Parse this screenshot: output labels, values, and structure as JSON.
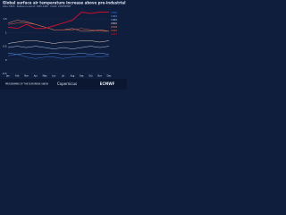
{
  "chart_data": {
    "type": "line",
    "title": "Global surface air temperature increase above pre-industrial",
    "subtitle": "Data: ERA5 · Reference period: 1850-1900 · Credit: C3S/ECMWF",
    "categories": [
      "Jan",
      "Feb",
      "Mar",
      "Apr",
      "May",
      "Jun",
      "Jul",
      "Aug",
      "Sep",
      "Oct",
      "Nov",
      "Dec"
    ],
    "series": [
      {
        "name": "1940",
        "color": "#3b6fd8",
        "values": [
          0.15,
          0.2,
          0.1,
          0.05,
          0.1,
          0.1,
          0.05,
          0.1,
          0.1,
          0.15,
          0.1,
          0.15
        ]
      },
      {
        "name": "1960",
        "color": "#6a9be8",
        "values": [
          0.25,
          0.2,
          0.25,
          0.2,
          0.2,
          0.25,
          0.2,
          0.2,
          0.25,
          0.2,
          0.25,
          0.2
        ]
      },
      {
        "name": "1980",
        "color": "#aac6ef",
        "values": [
          0.45,
          0.5,
          0.45,
          0.5,
          0.45,
          0.4,
          0.45,
          0.4,
          0.45,
          0.5,
          0.45,
          0.5
        ]
      },
      {
        "name": "2000",
        "color": "#e8d0c8",
        "values": [
          0.6,
          0.65,
          0.7,
          0.7,
          0.65,
          0.6,
          0.65,
          0.65,
          0.7,
          0.7,
          0.65,
          0.7
        ]
      },
      {
        "name": "2016",
        "color": "#f08a6a",
        "values": [
          1.35,
          1.45,
          1.4,
          1.3,
          1.2,
          1.1,
          1.1,
          1.15,
          1.05,
          1.05,
          1.1,
          1.05
        ]
      },
      {
        "name": "2020",
        "color": "#e0603f",
        "values": [
          1.3,
          1.35,
          1.35,
          1.3,
          1.2,
          1.1,
          1.1,
          1.1,
          1.15,
          1.1,
          1.05,
          1.05
        ]
      },
      {
        "name": "2023",
        "color": "#c8102e",
        "values": [
          1.2,
          1.15,
          1.3,
          1.15,
          1.15,
          1.25,
          1.35,
          1.45,
          1.75,
          1.7,
          1.75,
          1.75
        ]
      }
    ],
    "ylim": [
      -0.5,
      1.8
    ],
    "yticks": [
      -0.5,
      0,
      0.5,
      1,
      1.5
    ],
    "grid": true,
    "footer": [
      "PROGRAMME OF THE EUROPEAN UNION",
      "Copernicus",
      "ECMWF"
    ]
  }
}
